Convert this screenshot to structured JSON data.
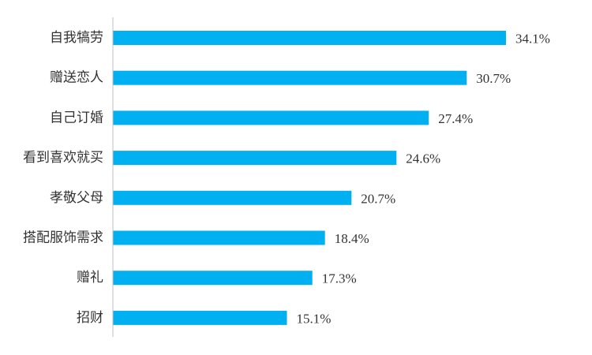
{
  "colors": {
    "bar": "#00b0f0",
    "axis": "#bfbfbf",
    "text": "#333333"
  },
  "chart_data": {
    "type": "bar",
    "orientation": "horizontal",
    "title": "",
    "xlabel": "",
    "ylabel": "",
    "grid": false,
    "legend": "none",
    "xlim": [
      0,
      35
    ],
    "categories": [
      "自我犒劳",
      "赠送恋人",
      "自己订婚",
      "看到喜欢就买",
      "孝敬父母",
      "搭配服饰需求",
      "赠礼",
      "招财"
    ],
    "values": [
      34.1,
      30.7,
      27.4,
      24.6,
      20.7,
      18.4,
      17.3,
      15.1
    ],
    "value_labels": [
      "34.1%",
      "30.7%",
      "27.4%",
      "24.6%",
      "20.7%",
      "18.4%",
      "17.3%",
      "15.1%"
    ]
  }
}
